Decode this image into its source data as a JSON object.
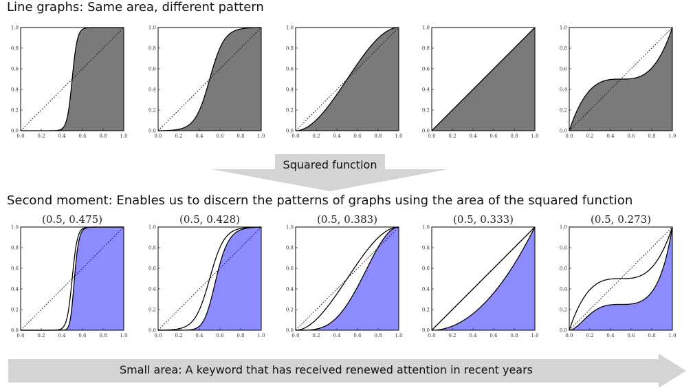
{
  "top_heading": "Line graphs: Same area, different pattern",
  "bottom_heading": "Second moment: Enables us to discern the patterns of graphs using the area of the squared function",
  "arrow_down_label": "Squared function",
  "arrow_right_label": "Small area: A keyword that has received renewed attention in recent years",
  "colors": {
    "gray_fill": "#7a7a7a",
    "blue_fill": "#8c8cff",
    "arrow": "#d4d4d4"
  },
  "axis": {
    "x_ticks": [
      "0.0",
      "0.2",
      "0.4",
      "0.6",
      "0.8",
      "1.0"
    ],
    "y_ticks": [
      "0.0",
      "0.2",
      "0.4",
      "0.6",
      "0.8",
      "1.0"
    ]
  },
  "top_row": [
    {
      "curve": "steep-s"
    },
    {
      "curve": "s"
    },
    {
      "curve": "soft-s"
    },
    {
      "curve": "diagonal"
    },
    {
      "curve": "inverse-s"
    }
  ],
  "bottom_row": [
    {
      "caption": "(0.5, 0.475)",
      "curve": "steep-s"
    },
    {
      "caption": "(0.5, 0.428)",
      "curve": "s"
    },
    {
      "caption": "(0.5, 0.383)",
      "curve": "soft-s"
    },
    {
      "caption": "(0.5, 0.333)",
      "curve": "diagonal"
    },
    {
      "caption": "(0.5, 0.273)",
      "curve": "inverse-s"
    }
  ]
}
